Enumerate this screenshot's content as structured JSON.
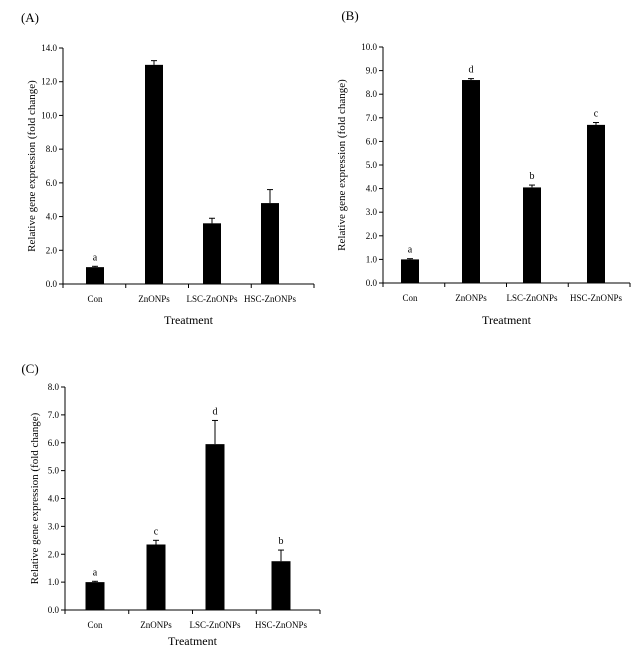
{
  "chart_data": [
    {
      "type": "bar",
      "panel_label": "(A)",
      "categories": [
        "Con",
        "ZnONPs",
        "LSC-ZnONPs",
        "HSC-ZnONPs"
      ],
      "values": [
        1.0,
        13.0,
        3.6,
        4.8
      ],
      "errors": [
        0.05,
        0.25,
        0.3,
        0.8
      ],
      "significance": [
        "a",
        "",
        "",
        ""
      ],
      "xlabel": "Treatment",
      "ylabel": "Relative gene expression (fold change)",
      "ylim": [
        0,
        14
      ],
      "yticks": [
        "0.0",
        "2.0",
        "4.0",
        "6.0",
        "8.0",
        "10.0",
        "12.0",
        "14.0"
      ],
      "bar_color": "#000000",
      "grid": false
    },
    {
      "type": "bar",
      "panel_label": "(B)",
      "categories": [
        "Con",
        "ZnONPs",
        "LSC-ZnONPs",
        "HSC-ZnONPs"
      ],
      "values": [
        1.0,
        8.6,
        4.05,
        6.7
      ],
      "errors": [
        0.03,
        0.06,
        0.1,
        0.1
      ],
      "significance": [
        "a",
        "d",
        "b",
        "c"
      ],
      "xlabel": "Treatment",
      "ylabel": "Relative gene expression (fold change)",
      "ylim": [
        0,
        10
      ],
      "yticks": [
        "0.0",
        "1.0",
        "2.0",
        "3.0",
        "4.0",
        "5.0",
        "6.0",
        "7.0",
        "8.0",
        "9.0",
        "10.0"
      ],
      "bar_color": "#000000",
      "grid": false
    },
    {
      "type": "bar",
      "panel_label": "(C)",
      "categories": [
        "Con",
        "ZnONPs",
        "LSC-ZnONPs",
        "HSC-ZnONPs"
      ],
      "values": [
        1.0,
        2.35,
        5.95,
        1.75
      ],
      "errors": [
        0.03,
        0.15,
        0.85,
        0.4
      ],
      "significance": [
        "a",
        "c",
        "d",
        "b"
      ],
      "xlabel": "Treatment",
      "ylabel": "Relative gene expression (fold change)",
      "ylim": [
        0,
        8
      ],
      "yticks": [
        "0.0",
        "1.0",
        "2.0",
        "3.0",
        "4.0",
        "5.0",
        "6.0",
        "7.0",
        "8.0"
      ],
      "bar_color": "#000000",
      "grid": false
    }
  ]
}
